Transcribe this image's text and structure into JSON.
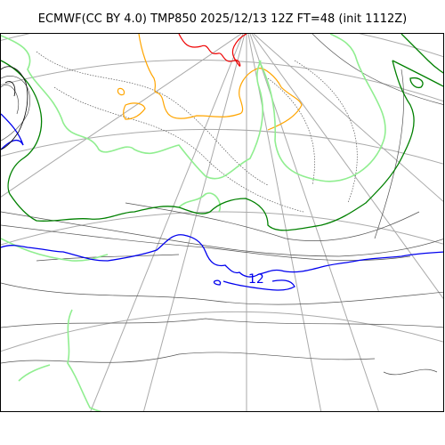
{
  "header": {
    "title": "ECMWF(CC BY 4.0) TMP850 2025/12/13 12Z FT=48 (init 1112Z)"
  },
  "map": {
    "colors": {
      "coast": "#000000",
      "grid": "#aaaaaa",
      "iso_pressure": "#555555",
      "iso_minus_24": "#ee0000",
      "iso_minus_18": "#ffa500",
      "iso_minus_6": "#90ee90",
      "iso_0": "#008000",
      "iso_12": "#0000ee"
    },
    "contour_labels": [
      {
        "value": "12"
      }
    ]
  }
}
